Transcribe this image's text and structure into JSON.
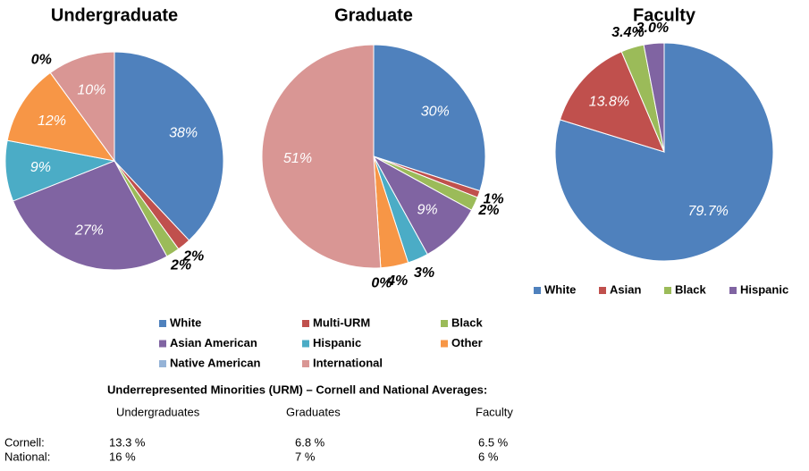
{
  "chart_data": [
    {
      "type": "pie",
      "title": "Undergraduate",
      "categories": [
        "White",
        "Multi-URM",
        "Black",
        "Asian American",
        "Hispanic",
        "Other",
        "Native American",
        "International"
      ],
      "values": [
        38,
        2,
        2,
        27,
        9,
        12,
        0,
        10
      ],
      "value_labels": [
        "38%",
        "2%",
        "2%",
        "27%",
        "9%",
        "12%",
        "0%",
        "10%"
      ],
      "colors": [
        "#4f81bd",
        "#c0504d",
        "#9bbb59",
        "#8064a2",
        "#4bacc6",
        "#f79646",
        "#95b3d7",
        "#d99694"
      ]
    },
    {
      "type": "pie",
      "title": "Graduate",
      "categories": [
        "White",
        "Multi-URM",
        "Black",
        "Asian American",
        "Hispanic",
        "Other",
        "Native American",
        "International"
      ],
      "values": [
        30,
        1,
        2,
        9,
        3,
        4,
        0,
        51
      ],
      "value_labels": [
        "30%",
        "1%",
        "2%",
        "9%",
        "3%",
        "4%",
        "0%",
        "51%"
      ],
      "colors": [
        "#4f81bd",
        "#c0504d",
        "#9bbb59",
        "#8064a2",
        "#4bacc6",
        "#f79646",
        "#95b3d7",
        "#d99694"
      ]
    },
    {
      "type": "pie",
      "title": "Faculty",
      "categories": [
        "White",
        "Asian",
        "Black",
        "Hispanic"
      ],
      "values": [
        79.7,
        13.8,
        3.4,
        3.0
      ],
      "value_labels": [
        "79.7%",
        "13.8%",
        "3.4%",
        "3.0%"
      ],
      "colors": [
        "#4f81bd",
        "#c0504d",
        "#9bbb59",
        "#8064a2"
      ]
    }
  ],
  "table": {
    "title": "Underrepresented Minorities (URM) – Cornell and National Averages:",
    "columns": [
      "Undergraduates",
      "Graduates",
      "Faculty"
    ],
    "rows": [
      [
        "Cornell:",
        "13.3 %",
        "6.8 %",
        "6.5 %"
      ],
      [
        "National:",
        "16 %",
        "7 %",
        "6 %"
      ]
    ]
  }
}
